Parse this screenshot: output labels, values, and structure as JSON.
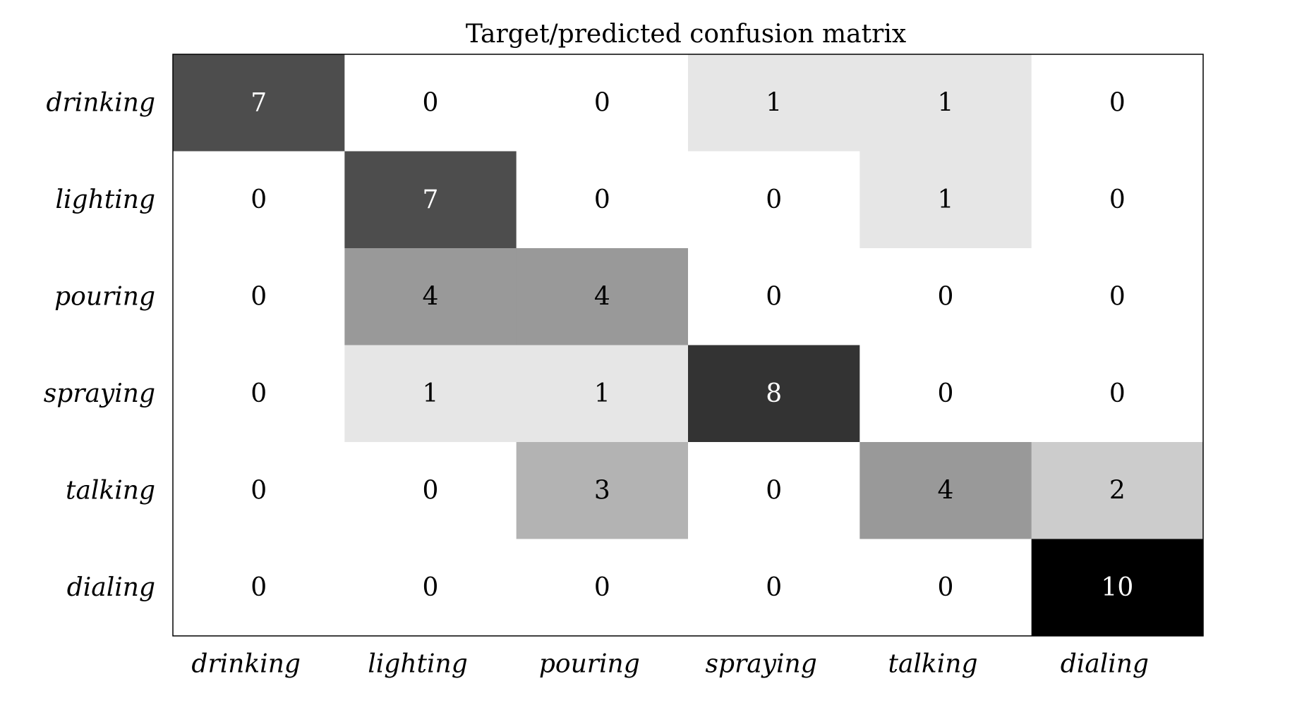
{
  "chart_data": {
    "type": "heatmap",
    "title": "Target/predicted confusion matrix",
    "xlabel": "",
    "ylabel": "",
    "row_labels": [
      "drinking",
      "lighting",
      "pouring",
      "spraying",
      "talking",
      "dialing"
    ],
    "col_labels": [
      "drinking",
      "lighting",
      "pouring",
      "spraying",
      "talking",
      "dialing"
    ],
    "values": [
      [
        7,
        0,
        0,
        1,
        1,
        0
      ],
      [
        0,
        7,
        0,
        0,
        1,
        0
      ],
      [
        0,
        4,
        4,
        0,
        0,
        0
      ],
      [
        0,
        1,
        1,
        8,
        0,
        0
      ],
      [
        0,
        0,
        3,
        0,
        4,
        2
      ],
      [
        0,
        0,
        0,
        0,
        0,
        10
      ]
    ],
    "value_range": [
      0,
      10
    ],
    "colormap": "grayscale (white = 0, black = 10)",
    "grid": false,
    "legend": "none"
  }
}
